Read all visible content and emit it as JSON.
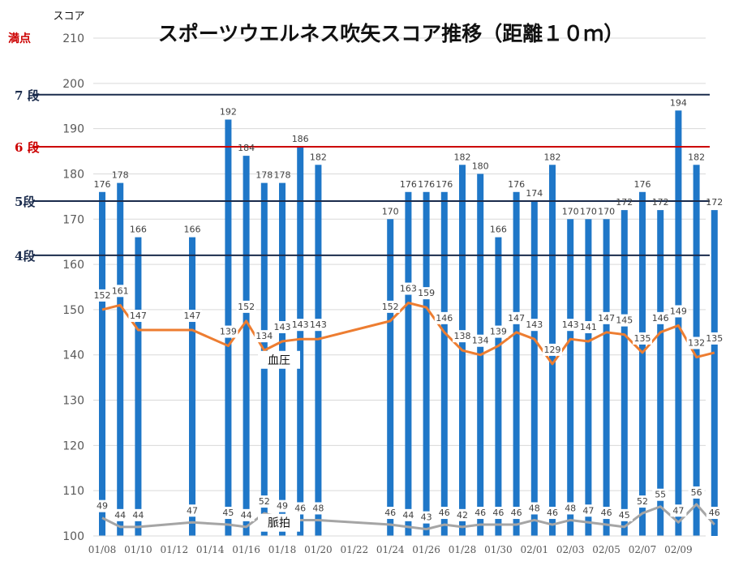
{
  "chart_data": {
    "type": "bar",
    "title": "スポーツウエルネス吹矢スコア推移（距離１０ｍ）",
    "ylabel": "スコア",
    "full_score_label": "満点",
    "ylim": [
      100,
      210
    ],
    "yticks": [
      100,
      110,
      120,
      130,
      140,
      150,
      160,
      170,
      180,
      190,
      200,
      210
    ],
    "x_tick_labels": [
      "01/08",
      "01/10",
      "01/12",
      "01/14",
      "01/16",
      "01/18",
      "01/20",
      "01/22",
      "01/24",
      "01/26",
      "01/28",
      "01/30",
      "02/01",
      "02/03",
      "02/05",
      "02/07",
      "02/09"
    ],
    "grid": true,
    "series": [
      {
        "name": "スコア",
        "kind": "bar",
        "color": "#1f77c8",
        "points": [
          {
            "d": 0,
            "v": 176,
            "bp": 150,
            "hr": 104,
            "bpl": "152",
            "hrl": "49"
          },
          {
            "d": 1,
            "v": 178,
            "bp": 151,
            "hr": 102,
            "bpl": "161",
            "hrl": "44"
          },
          {
            "d": 2,
            "v": 166,
            "bp": 145.5,
            "hr": 102,
            "bpl": "147",
            "hrl": "44"
          },
          {
            "d": 5,
            "v": 166,
            "bp": 145.5,
            "hr": 103,
            "bpl": "147",
            "hrl": "47"
          },
          {
            "d": 7,
            "v": 192,
            "bp": 142,
            "hr": 102.5,
            "bpl": "139",
            "hrl": "45"
          },
          {
            "d": 8,
            "v": 184,
            "bp": 147.5,
            "hr": 102,
            "bpl": "152",
            "hrl": "44"
          },
          {
            "d": 9,
            "v": 178,
            "bp": 141,
            "hr": 105,
            "bpl": "134",
            "hrl": "52"
          },
          {
            "d": 10,
            "v": 178,
            "bp": 143,
            "hr": 104,
            "bpl": "143",
            "hrl": "49"
          },
          {
            "d": 11,
            "v": 186,
            "bp": 143.5,
            "hr": 103.5,
            "bpl": "143",
            "hrl": "46"
          },
          {
            "d": 12,
            "v": 182,
            "bp": 143.5,
            "hr": 103.5,
            "bpl": "143",
            "hrl": "48"
          },
          {
            "d": 16,
            "v": 170,
            "bp": 147.5,
            "hr": 102.5,
            "bpl": "152",
            "hrl": "46"
          },
          {
            "d": 17,
            "v": 176,
            "bp": 151.5,
            "hr": 102,
            "bpl": "163",
            "hrl": "44"
          },
          {
            "d": 18,
            "v": 176,
            "bp": 150.5,
            "hr": 101.5,
            "bpl": "159",
            "hrl": "43"
          },
          {
            "d": 19,
            "v": 176,
            "bp": 145,
            "hr": 102.5,
            "bpl": "146",
            "hrl": "46"
          },
          {
            "d": 20,
            "v": 182,
            "bp": 141,
            "hr": 102,
            "bpl": "138",
            "hrl": "42"
          },
          {
            "d": 21,
            "v": 180,
            "bp": 140,
            "hr": 102.5,
            "bpl": "134",
            "hrl": "46"
          },
          {
            "d": 22,
            "v": 166,
            "bp": 142,
            "hr": 102.5,
            "bpl": "139",
            "hrl": "46"
          },
          {
            "d": 23,
            "v": 176,
            "bp": 145,
            "hr": 102.5,
            "bpl": "147",
            "hrl": "46"
          },
          {
            "d": 24,
            "v": 174,
            "bp": 143.5,
            "hr": 103.5,
            "bpl": "143",
            "hrl": "48"
          },
          {
            "d": 25,
            "v": 182,
            "bp": 138,
            "hr": 102.5,
            "bpl": "129",
            "hrl": "46"
          },
          {
            "d": 26,
            "v": 170,
            "bp": 143.5,
            "hr": 103.5,
            "bpl": "143",
            "hrl": "48"
          },
          {
            "d": 27,
            "v": 170,
            "bp": 143,
            "hr": 103,
            "bpl": "141",
            "hrl": "47"
          },
          {
            "d": 28,
            "v": 170,
            "bp": 145,
            "hr": 102.5,
            "bpl": "147",
            "hrl": "46"
          },
          {
            "d": 29,
            "v": 172,
            "bp": 144.5,
            "hr": 102,
            "bpl": "145",
            "hrl": "45"
          },
          {
            "d": 30,
            "v": 176,
            "bp": 140.5,
            "hr": 105,
            "bpl": "135",
            "hrl": "52"
          },
          {
            "d": 31,
            "v": 172,
            "bp": 145,
            "hr": 106.5,
            "bpl": "146",
            "hrl": "55"
          },
          {
            "d": 32,
            "v": 194,
            "bp": 146.5,
            "hr": 103,
            "bpl": "149",
            "hrl": "47"
          },
          {
            "d": 33,
            "v": 182,
            "bp": 139.5,
            "hr": 107,
            "bpl": "132",
            "hrl": "56"
          },
          {
            "d": 34,
            "v": 172,
            "bp": 140.5,
            "hr": 102.5,
            "bpl": "135",
            "hrl": "46"
          }
        ]
      },
      {
        "name": "血圧",
        "kind": "line",
        "color": "#ed7d31"
      },
      {
        "name": "脈拍",
        "kind": "line",
        "color": "#a5a5a5"
      }
    ],
    "reference_lines": [
      {
        "label": "7 段",
        "value": 197.5,
        "color": "#1a2b4c"
      },
      {
        "label": "6 段",
        "value": 186,
        "color": "#cc0000"
      },
      {
        "label": "5段",
        "value": 174,
        "color": "#1a2b4c"
      },
      {
        "label": "4段",
        "value": 162,
        "color": "#1a2b4c"
      }
    ]
  }
}
